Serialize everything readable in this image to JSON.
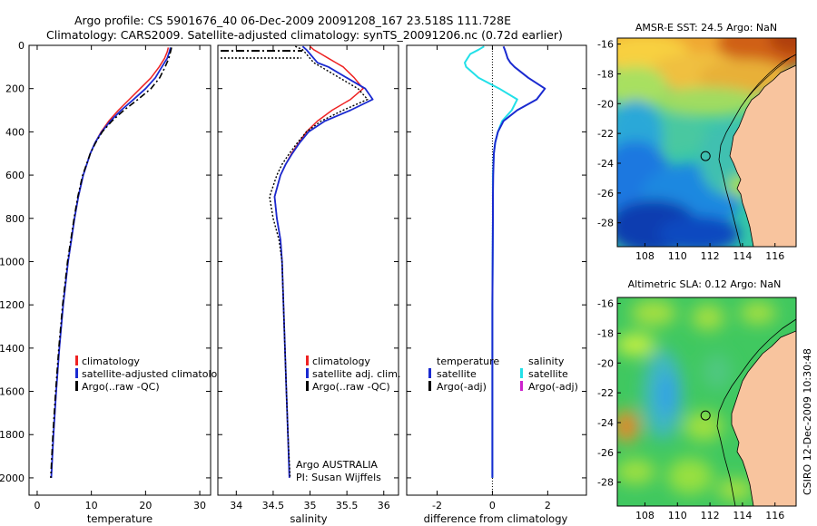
{
  "figure": {
    "title_line1": "Argo profile: CS 5901676_40 06-Dec-2009 20091208_167 23.518S 111.728E",
    "title_line2": "Climatology: CARS2009. Satellite-adjusted climatology: synTS_20091206.nc (0.72d earlier)",
    "side_label": "CSIRO 12-Dec-2009 10:30:48"
  },
  "colors": {
    "climatology": "#ee2222",
    "satellite": "#1a2ad0",
    "argo": "#000000",
    "satellite_salinity": "#22e0e8",
    "argo_adj_salinity": "#cc22cc",
    "land": "#f8c49e"
  },
  "chart_data": [
    {
      "type": "line",
      "name": "temperature-profile",
      "xlabel": "temperature",
      "xlim": [
        -1.5,
        32
      ],
      "ylim": [
        0,
        2080
      ],
      "xticks": [
        0,
        10,
        20,
        30
      ],
      "yticks": [
        0,
        200,
        400,
        600,
        800,
        1000,
        1200,
        1400,
        1600,
        1800,
        2000
      ],
      "depth": [
        10,
        30,
        60,
        100,
        150,
        200,
        250,
        300,
        350,
        400,
        450,
        500,
        600,
        700,
        800,
        900,
        1000,
        1200,
        1400,
        1600,
        1800,
        2000
      ],
      "series": [
        {
          "name": "climatology",
          "values": [
            24.2,
            24.0,
            23.5,
            22.5,
            21.0,
            19.0,
            17.0,
            15.0,
            13.2,
            11.8,
            10.7,
            9.8,
            8.5,
            7.6,
            6.9,
            6.3,
            5.7,
            4.8,
            4.1,
            3.5,
            3.0,
            2.6
          ]
        },
        {
          "name": "satellite-adjusted climatology",
          "values": [
            24.6,
            24.4,
            24.0,
            23.0,
            21.8,
            20.0,
            17.8,
            15.5,
            13.5,
            11.9,
            10.7,
            9.8,
            8.5,
            7.6,
            6.9,
            6.3,
            5.7,
            4.8,
            4.1,
            3.5,
            3.0,
            2.6
          ]
        },
        {
          "name": "Argo(..raw -QC)",
          "values": [
            24.8,
            24.6,
            24.3,
            23.6,
            22.6,
            21.0,
            18.6,
            16.0,
            13.8,
            12.0,
            10.8,
            9.8,
            8.4,
            7.5,
            6.8,
            6.2,
            5.6,
            4.7,
            4.0,
            3.4,
            2.9,
            2.5
          ]
        }
      ],
      "legend": [
        "climatology",
        "satellite-adjusted climatology",
        "Argo(..raw -QC)"
      ]
    },
    {
      "type": "line",
      "name": "salinity-profile",
      "xlabel": "salinity",
      "xlim": [
        33.75,
        36.2
      ],
      "ylim": [
        0,
        2080
      ],
      "xticks": [
        34,
        34.5,
        35,
        35.5,
        36
      ],
      "depth": [
        5,
        20,
        40,
        60,
        80,
        100,
        150,
        200,
        250,
        300,
        350,
        400,
        450,
        500,
        550,
        600,
        700,
        800,
        900,
        1000,
        1200,
        1400,
        1600,
        1800,
        2000
      ],
      "series": [
        {
          "name": "climatology",
          "values": [
            35.0,
            35.05,
            35.15,
            35.25,
            35.35,
            35.45,
            35.6,
            35.72,
            35.55,
            35.3,
            35.1,
            34.95,
            34.85,
            34.75,
            34.67,
            34.6,
            34.52,
            34.55,
            34.6,
            34.62,
            34.64,
            34.66,
            34.68,
            34.7,
            34.72
          ]
        },
        {
          "name": "satellite adj. clim.",
          "values": [
            34.9,
            34.95,
            35.0,
            35.05,
            35.1,
            35.25,
            35.5,
            35.75,
            35.85,
            35.55,
            35.2,
            34.98,
            34.86,
            34.76,
            34.67,
            34.6,
            34.52,
            34.55,
            34.6,
            34.62,
            34.64,
            34.66,
            34.68,
            34.7,
            34.72
          ]
        },
        {
          "name": "Argo(..raw -QC)",
          "values": [
            34.8,
            34.9,
            34.95,
            35.0,
            35.05,
            35.15,
            35.4,
            35.65,
            35.78,
            35.45,
            35.15,
            34.95,
            34.83,
            34.72,
            34.62,
            34.55,
            34.45,
            34.5,
            34.58,
            34.62,
            34.64,
            34.66,
            34.68,
            34.7,
            34.73
          ]
        }
      ],
      "legend": [
        "climatology",
        "satellite adj. clim.",
        "Argo(..raw -QC)"
      ],
      "annotation_line1": "Argo AUSTRALIA",
      "annotation_line2": "PI: Susan Wijffels"
    },
    {
      "type": "line",
      "name": "difference-profile",
      "xlabel": "difference from climatology",
      "xlim": [
        -3.1,
        3.4
      ],
      "ylim": [
        0,
        2080
      ],
      "xticks": [
        -2,
        0,
        2
      ],
      "depth": [
        5,
        20,
        40,
        60,
        80,
        100,
        150,
        200,
        250,
        300,
        350,
        400,
        450,
        500,
        600,
        700,
        800,
        1000,
        1200,
        1400,
        1600,
        1800,
        2000
      ],
      "series": [
        {
          "name": "temperature satellite",
          "values": [
            0.4,
            0.45,
            0.5,
            0.55,
            0.65,
            0.8,
            1.3,
            1.9,
            1.6,
            0.9,
            0.4,
            0.2,
            0.1,
            0.05,
            0.03,
            0.02,
            0.02,
            0.01,
            0.0,
            0.0,
            0.0,
            0.0,
            0.0
          ]
        },
        {
          "name": "salinity satellite",
          "values": [
            -0.3,
            -0.5,
            -0.8,
            -0.9,
            -1.0,
            -0.95,
            -0.5,
            0.25,
            0.9,
            0.7,
            0.35,
            0.2,
            0.1,
            0.05,
            0.02,
            0.02,
            0.02,
            0.01,
            0.0,
            0.0,
            0.0,
            0.0,
            0.0
          ]
        }
      ],
      "legend_temperature_title": "temperature",
      "legend_salinity_title": "salinity",
      "legend": [
        "satellite",
        "Argo(-adj)",
        "satellite",
        "Argo(-adj)"
      ]
    },
    {
      "type": "heatmap",
      "name": "sst-map",
      "title": "AMSR-E SST: 24.5 Argo: NaN",
      "xlim": [
        106.3,
        117.3
      ],
      "ylim": [
        -29.6,
        -15.6
      ],
      "xticks": [
        108,
        110,
        112,
        114,
        116
      ],
      "yticks": [
        -16,
        -18,
        -20,
        -22,
        -24,
        -26,
        -28
      ],
      "float_position": [
        111.728,
        -23.518
      ]
    },
    {
      "type": "heatmap",
      "name": "sla-map",
      "title": "Altimetric SLA: 0.12 Argo: NaN",
      "xlim": [
        106.3,
        117.3
      ],
      "ylim": [
        -29.6,
        -15.6
      ],
      "xticks": [
        108,
        110,
        112,
        114,
        116
      ],
      "yticks": [
        -16,
        -18,
        -20,
        -22,
        -24,
        -26,
        -28
      ],
      "float_position": [
        111.728,
        -23.518
      ]
    }
  ]
}
